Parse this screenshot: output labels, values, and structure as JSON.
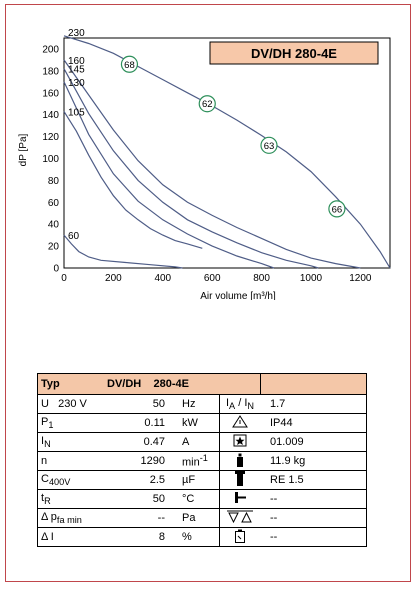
{
  "chart_data": {
    "type": "line",
    "title": "DV/DH 280-4E",
    "xlabel": "Air volume [m³/h]",
    "ylabel": "dP [Pa]",
    "xlim": [
      0,
      1320
    ],
    "ylim": [
      0,
      210
    ],
    "x_ticks": [
      "0",
      "200",
      "400",
      "600",
      "800",
      "1000",
      "1200"
    ],
    "y_ticks": [
      "0",
      "20",
      "40",
      "60",
      "80",
      "100",
      "120",
      "140",
      "160",
      "180",
      "200"
    ],
    "grid": true,
    "series": [
      {
        "name": "230",
        "points": [
          [
            0,
            212
          ],
          [
            100,
            205
          ],
          [
            200,
            196
          ],
          [
            300,
            184
          ],
          [
            400,
            172
          ],
          [
            500,
            160
          ],
          [
            600,
            148
          ],
          [
            700,
            135
          ],
          [
            800,
            121
          ],
          [
            900,
            106
          ],
          [
            1000,
            88
          ],
          [
            1100,
            65
          ],
          [
            1200,
            40
          ],
          [
            1280,
            15
          ],
          [
            1320,
            0
          ]
        ]
      },
      {
        "name": "160",
        "points": [
          [
            0,
            190
          ],
          [
            100,
            158
          ],
          [
            200,
            126
          ],
          [
            300,
            98
          ],
          [
            400,
            76
          ],
          [
            500,
            60
          ],
          [
            600,
            48
          ],
          [
            700,
            37
          ],
          [
            800,
            27
          ],
          [
            900,
            17
          ],
          [
            1000,
            9
          ],
          [
            1100,
            4
          ],
          [
            1200,
            0
          ]
        ]
      },
      {
        "name": "145",
        "points": [
          [
            0,
            182
          ],
          [
            100,
            141
          ],
          [
            200,
            107
          ],
          [
            300,
            80
          ],
          [
            400,
            60
          ],
          [
            500,
            44
          ],
          [
            600,
            33
          ],
          [
            700,
            23
          ],
          [
            800,
            14
          ],
          [
            900,
            7
          ],
          [
            1000,
            2
          ],
          [
            1030,
            0
          ]
        ]
      },
      {
        "name": "130",
        "points": [
          [
            0,
            170
          ],
          [
            100,
            122
          ],
          [
            200,
            86
          ],
          [
            300,
            61
          ],
          [
            400,
            44
          ],
          [
            500,
            31
          ],
          [
            600,
            20
          ],
          [
            700,
            11
          ],
          [
            800,
            4
          ],
          [
            850,
            0
          ]
        ]
      },
      {
        "name": "105",
        "points": [
          [
            0,
            143
          ],
          [
            50,
            125
          ],
          [
            100,
            103
          ],
          [
            150,
            83
          ],
          [
            200,
            66
          ],
          [
            250,
            53
          ],
          [
            300,
            44
          ],
          [
            350,
            36
          ],
          [
            400,
            30
          ],
          [
            450,
            25
          ],
          [
            500,
            22
          ],
          [
            560,
            18
          ]
        ]
      },
      {
        "name": "60",
        "points": [
          [
            0,
            30
          ],
          [
            30,
            22
          ],
          [
            60,
            15
          ],
          [
            100,
            10
          ],
          [
            150,
            7
          ],
          [
            250,
            5
          ],
          [
            350,
            3
          ],
          [
            450,
            1
          ],
          [
            480,
            0
          ]
        ]
      }
    ],
    "markers": [
      {
        "label": "68",
        "x": 265,
        "y": 186
      },
      {
        "label": "62",
        "x": 580,
        "y": 150
      },
      {
        "label": "63",
        "x": 830,
        "y": 112
      },
      {
        "label": "66",
        "x": 1105,
        "y": 54
      }
    ]
  },
  "colors": {
    "frame": "#c0464b",
    "curve": "#4f5d87",
    "grid": "#8a8a8a",
    "title_bg": "#f7c8a9",
    "marker": "#2d8f5a"
  },
  "table": {
    "header": {
      "col1": "Typ",
      "col2": "DV/DH",
      "col3": "280-4E"
    },
    "rows": [
      {
        "label": "U",
        "label_extra": "230 V",
        "value": "50",
        "unit": "Hz",
        "icon": "current-ratio-icon",
        "icon_text": "I A / I N",
        "right": "1.7"
      },
      {
        "label": "P",
        "sub": "1",
        "value": "0.11",
        "unit": "kW",
        "icon": "warning-triangle-icon",
        "right": "IP44"
      },
      {
        "label": "I",
        "sub": "N",
        "value": "0.47",
        "unit": "A",
        "icon": "star-box-icon",
        "right": "01.009"
      },
      {
        "label": "n",
        "value": "1290",
        "unit": "min",
        "unit_sup": "-1",
        "icon": "weight-icon",
        "right": "11.9 kg"
      },
      {
        "label": "C",
        "sub": "400V",
        "value": "2.5",
        "unit": "µF",
        "icon": "capacitor-icon",
        "right": "RE 1.5"
      },
      {
        "label": "t",
        "sub": "R",
        "value": "50",
        "unit": "°C",
        "icon": "thermal-contact-icon",
        "right": "--"
      },
      {
        "label": "Δ p",
        "sub": "fa min",
        "value": "--",
        "unit": "Pa",
        "icon": "pressure-switch-icon",
        "right": "--"
      },
      {
        "label": "Δ I",
        "value": "8",
        "unit": "%",
        "icon": "battery-icon",
        "right": "--"
      }
    ]
  }
}
